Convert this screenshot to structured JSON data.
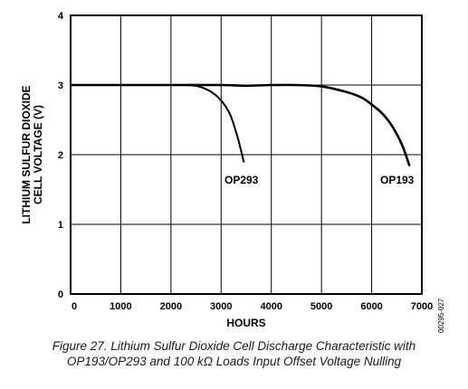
{
  "chart_data": {
    "type": "line",
    "title": "",
    "xlabel": "HOURS",
    "ylabel_lines": [
      "LITHIUM SULFUR DIOXIDE",
      "CELL VOLTAGE (V)"
    ],
    "xlim": [
      0,
      7000
    ],
    "ylim": [
      0,
      4
    ],
    "xticks": [
      "0",
      "1000",
      "2000",
      "3000",
      "4000",
      "5000",
      "6000",
      "7000"
    ],
    "yticks": [
      "0",
      "1",
      "2",
      "3",
      "4"
    ],
    "grid": true,
    "legend": "none",
    "series": [
      {
        "name": "OP293",
        "x": [
          0,
          2000,
          2300,
          2600,
          2900,
          3150,
          3300,
          3400,
          3450
        ],
        "y": [
          3.0,
          3.0,
          3.0,
          2.97,
          2.85,
          2.62,
          2.32,
          2.05,
          1.9
        ]
      },
      {
        "name": "OP193",
        "x": [
          0,
          1000,
          2000,
          3000,
          3500,
          4000,
          4500,
          5000,
          5500,
          5800,
          6000,
          6200,
          6400,
          6600,
          6750
        ],
        "y": [
          3.0,
          3.0,
          3.0,
          3.0,
          2.99,
          3.0,
          3.0,
          2.98,
          2.9,
          2.82,
          2.72,
          2.6,
          2.42,
          2.15,
          1.85
        ]
      }
    ]
  },
  "figure_code": "00295-027",
  "caption": {
    "line1": "Figure 27. Lithium Sulfur Dioxide Cell Discharge Characteristic with",
    "line2": "OP193/OP293 and 100 kΩ Loads Input Offset Voltage Nulling"
  }
}
